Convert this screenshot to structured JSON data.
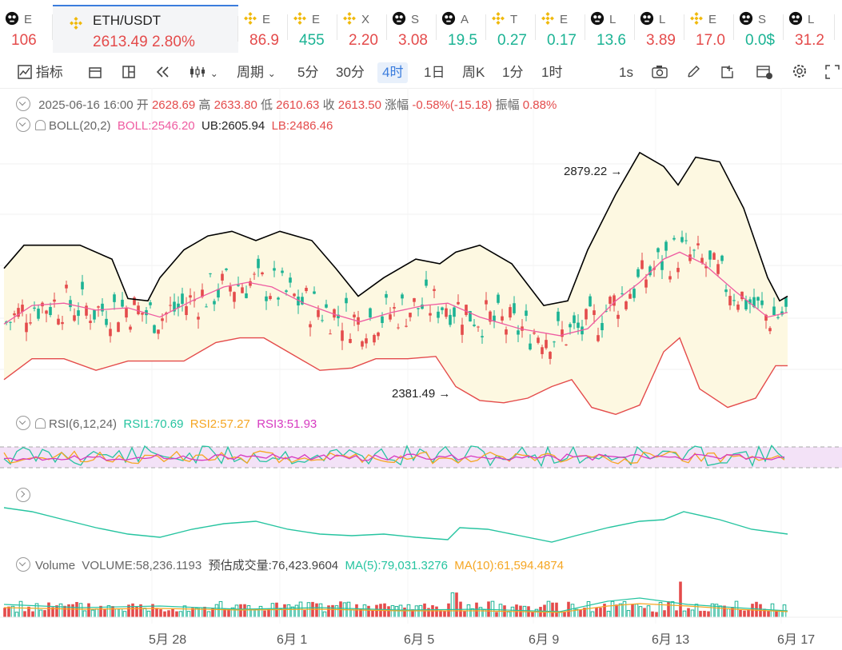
{
  "tabs": [
    {
      "name": "E",
      "price": "106",
      "dir": "up",
      "icon": "skull",
      "w": 66
    },
    {
      "name": "ETH/USDT",
      "price": "2613.49  2.80%",
      "dir": "up",
      "icon": "binance",
      "w": 232,
      "active": true
    },
    {
      "name": "E",
      "price": "86.9",
      "dir": "up",
      "icon": "binance",
      "w": 62
    },
    {
      "name": "E",
      "price": "455",
      "dir": "dn",
      "icon": "binance",
      "w": 62
    },
    {
      "name": "X",
      "price": "2.20",
      "dir": "up",
      "icon": "binance",
      "w": 62
    },
    {
      "name": "S",
      "price": "3.08",
      "dir": "up",
      "icon": "skull",
      "w": 62
    },
    {
      "name": "A",
      "price": "19.5",
      "dir": "dn",
      "icon": "skull",
      "w": 62
    },
    {
      "name": "T",
      "price": "0.27",
      "dir": "dn",
      "icon": "binance",
      "w": 62
    },
    {
      "name": "E",
      "price": "0.17",
      "dir": "dn",
      "icon": "binance",
      "w": 62
    },
    {
      "name": "L",
      "price": "13.6",
      "dir": "dn",
      "icon": "skull",
      "w": 62
    },
    {
      "name": "L",
      "price": "3.89",
      "dir": "up",
      "icon": "skull",
      "w": 62
    },
    {
      "name": "E",
      "price": "17.0",
      "dir": "up",
      "icon": "binance",
      "w": 62
    },
    {
      "name": "S",
      "price": "0.0$",
      "dir": "dn",
      "icon": "skull",
      "w": 62
    },
    {
      "name": "L",
      "price": "31.2",
      "dir": "up",
      "icon": "skull",
      "w": 64
    }
  ],
  "toolbar": {
    "indicator": "指标",
    "period": "周期",
    "p5m": "5分",
    "p30m": "30分",
    "p4h": "4时",
    "p1d": "1日",
    "pweek": "周K",
    "p1m": "1分",
    "p1h": "1时",
    "p1s": "1s"
  },
  "ohlc": {
    "date": "2025-06-16 16:00",
    "open_k": "开",
    "open": "2628.69",
    "high_k": "高",
    "high": "2633.80",
    "low_k": "低",
    "low": "2610.63",
    "close_k": "收",
    "close": "2613.50",
    "chg_k": "涨幅",
    "chg": "-0.58%(-15.18)",
    "amp_k": "振幅",
    "amp": "0.88%"
  },
  "boll": {
    "name": "BOLL(20,2)",
    "mid": "BOLL:2546.20",
    "ub": "UB:2605.94",
    "lb": "LB:2486.46"
  },
  "rsi": {
    "name": "RSI(6,12,24)",
    "r1": "RSI1:70.69",
    "r2": "RSI2:57.27",
    "r3": "RSI3:51.93"
  },
  "volume": {
    "name": "Volume",
    "vol": "VOLUME:58,236.1193",
    "est": "预估成交量:76,423.9604",
    "ma5": "MA(5):79,031.3276",
    "ma10": "MA(10):61,594.4874"
  },
  "annotations": {
    "high": "2879.22",
    "low": "2381.49"
  },
  "xaxis": [
    "5月 28",
    "6月 1",
    "6月 5",
    "6月 9",
    "6月 13",
    "6月 17"
  ],
  "colors": {
    "up": "#e44b4b",
    "down": "#1bb394",
    "boll_mid": "#ef5ba1",
    "ub": "#000000",
    "lb": "#e44b4b",
    "fill": "#fdf8e1",
    "rsi1": "#26c4a0",
    "rsi2": "#f5a623",
    "rsi3": "#d63ac0",
    "accent": "#3b7ddd"
  }
}
